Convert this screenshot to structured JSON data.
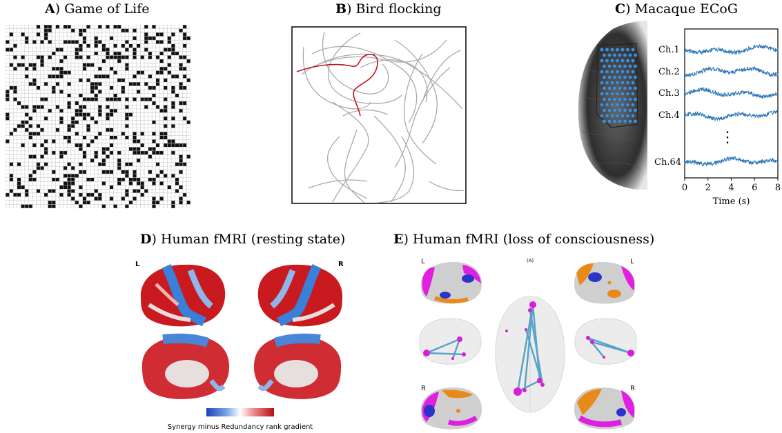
{
  "panels": {
    "a": {
      "letter": "A",
      "title": ") Game of Life"
    },
    "b": {
      "letter": "B",
      "title": ") Bird flocking"
    },
    "c": {
      "letter": "C",
      "title": ") Macaque ECoG"
    },
    "d": {
      "letter": "D",
      "title": ") Human fMRI (resting state)"
    },
    "e": {
      "letter": "E",
      "title": ") Human fMRI (loss of consciousness)"
    }
  },
  "ecog": {
    "channels": [
      "Ch.1",
      "Ch.2",
      "Ch.3",
      "Ch.4",
      "Ch.64"
    ],
    "ellipsis": "⋮",
    "xlabel": "Time (s)",
    "xticks": [
      "0",
      "2",
      "4",
      "6",
      "8"
    ],
    "trace_color": "#2f78b7"
  },
  "fmri_rest": {
    "left_hemi_label": "L",
    "right_hemi_label": "R",
    "colorbar_caption": "Synergy minus Redundancy rank gradient",
    "colors": {
      "low": "#1f4fc4",
      "mid": "#ffffff",
      "high": "#c40f16"
    }
  },
  "fmri_loc": {
    "center_label": "(A)",
    "top_left": "L",
    "top_right": "L",
    "bottom_left": "R",
    "bottom_right": "R",
    "colors": {
      "magenta": "#e01fe0",
      "orange": "#e88a1a",
      "blue": "#2b33c9",
      "edge": "#5aa3c8"
    }
  }
}
